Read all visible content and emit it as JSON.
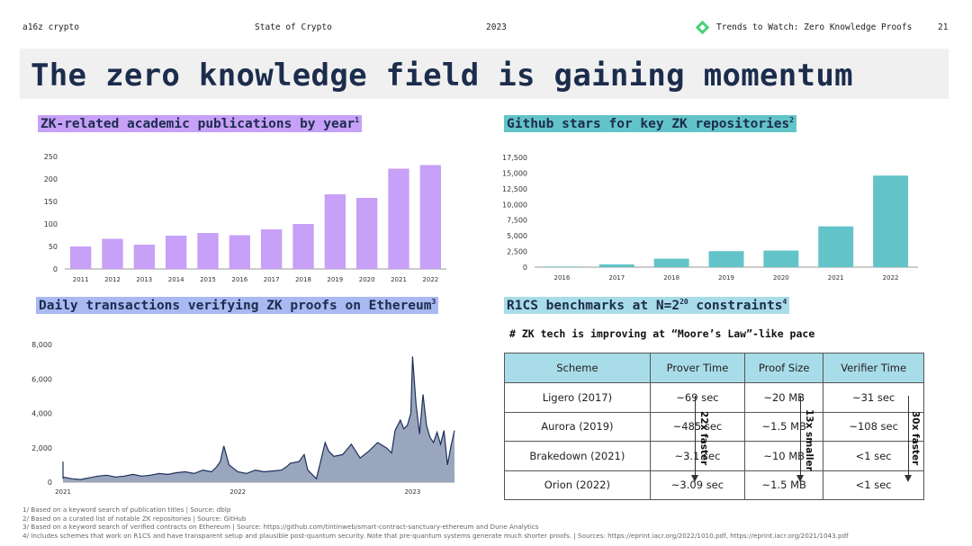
{
  "header": {
    "brand": "a16z crypto",
    "report": "State of Crypto",
    "year": "2023",
    "section": "Trends to Watch: Zero Knowledge Proofs",
    "page": "21"
  },
  "title": "The zero knowledge field is gaining momentum",
  "colors": {
    "purple": "#c7a0f7",
    "teal": "#62c4c8",
    "blue_band": "#a9b9f2",
    "navy": "#1c2c4c",
    "area": "#9aa6bd",
    "area_line": "#1e2f5c",
    "table_header": "#a8dce8",
    "logo_green": "#4cd07a"
  },
  "sections": {
    "pubs": {
      "title": "ZK-related academic publications by year",
      "sup": "1"
    },
    "stars": {
      "title": "Github stars for key ZK repositories",
      "sup": "2"
    },
    "tx": {
      "title": "Daily transactions verifying ZK proofs on Ethereum",
      "sup": "3"
    },
    "r1cs": {
      "title_pre": "R1CS benchmarks at N=2",
      "title_exp": "20",
      "title_post": " constraints",
      "sup": "4",
      "subtitle": "# ZK tech is improving at “Moore’s Law”-like pace"
    }
  },
  "chart_data": [
    {
      "type": "bar",
      "title": "ZK-related academic publications by year",
      "categories": [
        "2011",
        "2012",
        "2013",
        "2014",
        "2015",
        "2016",
        "2017",
        "2018",
        "2019",
        "2020",
        "2021",
        "2022"
      ],
      "values": [
        50,
        67,
        54,
        74,
        80,
        75,
        88,
        100,
        166,
        158,
        223,
        231
      ],
      "ylim": [
        0,
        250
      ],
      "yticks": [
        "0",
        "50",
        "100",
        "150",
        "200",
        "250"
      ],
      "grid": false,
      "color": "#c7a0f7"
    },
    {
      "type": "bar",
      "title": "Github stars for key ZK repositories",
      "categories": [
        "2016",
        "2017",
        "2018",
        "2019",
        "2020",
        "2021",
        "2022"
      ],
      "values": [
        100,
        450,
        1350,
        2550,
        2650,
        6500,
        14600
      ],
      "ylim": [
        0,
        17500
      ],
      "yticks": [
        "0",
        "2,500",
        "5,000",
        "7,500",
        "10,000",
        "12,500",
        "15,000",
        "17,500"
      ],
      "grid": false,
      "color": "#62c4c8"
    },
    {
      "type": "area",
      "title": "Daily transactions verifying ZK proofs on Ethereum",
      "x_ticks": [
        "2021",
        "2022",
        "2023"
      ],
      "ylim": [
        0,
        8000
      ],
      "yticks": [
        "0",
        "2,000",
        "4,000",
        "6,000",
        "8,000"
      ],
      "grid": false,
      "x_range": [
        2021.0,
        2023.24
      ],
      "series": [
        {
          "x": [
            2020.92,
            2020.94,
            2020.96,
            2020.98,
            2021.0,
            2021.05,
            2021.1,
            2021.15,
            2021.2,
            2021.25,
            2021.3,
            2021.35,
            2021.4,
            2021.45,
            2021.5,
            2021.55,
            2021.6,
            2021.65,
            2021.7,
            2021.75,
            2021.8,
            2021.85,
            2021.88,
            2021.9,
            2021.92,
            2021.95,
            2022.0,
            2022.05,
            2022.1,
            2022.15,
            2022.2,
            2022.25,
            2022.28,
            2022.3,
            2022.35,
            2022.38,
            2022.4,
            2022.45,
            2022.5,
            2022.52,
            2022.55,
            2022.6,
            2022.65,
            2022.7,
            2022.75,
            2022.8,
            2022.85,
            2022.88,
            2022.9,
            2022.93,
            2022.95,
            2022.97,
            2022.99,
            2023.0,
            2023.02,
            2023.04,
            2023.06,
            2023.08,
            2023.1,
            2023.12,
            2023.14,
            2023.16,
            2023.18,
            2023.2,
            2023.22,
            2023.24
          ],
          "y": [
            200,
            1200,
            400,
            600,
            300,
            200,
            150,
            250,
            350,
            400,
            300,
            350,
            450,
            350,
            400,
            500,
            450,
            550,
            600,
            500,
            700,
            600,
            900,
            1200,
            2100,
            1000,
            600,
            500,
            700,
            600,
            650,
            700,
            900,
            1100,
            1200,
            1600,
            700,
            200,
            2300,
            1800,
            1500,
            1600,
            2200,
            1400,
            1800,
            2300,
            2000,
            1700,
            3000,
            3600,
            3100,
            3300,
            4000,
            7300,
            4500,
            2800,
            5100,
            3300,
            2600,
            2300,
            2900,
            2200,
            3000,
            1000,
            2100,
            3000
          ]
        }
      ],
      "color": "#9aa6bd"
    },
    {
      "type": "table",
      "title": "R1CS benchmarks at N=2^20 constraints",
      "columns": [
        "Scheme",
        "Prover Time",
        "Proof Size",
        "Verifier Time"
      ],
      "rows": [
        [
          "Ligero (2017)",
          "~69 sec",
          "~20 MB",
          "~31 sec"
        ],
        [
          "Aurora (2019)",
          "~485 sec",
          "~1.5 MB",
          "~108 sec"
        ],
        [
          "Brakedown (2021)",
          "~3.1 sec",
          "~10 MB",
          "<1 sec"
        ],
        [
          "Orion (2022)",
          "~3.09 sec",
          "~1.5 MB",
          "<1 sec"
        ]
      ],
      "annotations": [
        "22x faster",
        "13x smaller",
        "30x faster"
      ]
    }
  ],
  "footnotes": [
    "1/ Based on a keyword search of publication titles | Source: dblp",
    "2/ Based on a curated list of notable ZK repositories | Source: GitHub",
    "3/ Based on a keyword search of verified contracts on Ethereum | Source: https://github.com/tintinweb/smart-contract-sanctuary-ethereum and Dune Analytics",
    "4/ Includes schemes that work on R1CS and have transparent setup and plausible post-quantum security. Note that pre-quantum systems generate much shorter proofs. | Sources: https://eprint.iacr.org/2022/1010.pdf, https://eprint.iacr.org/2021/1043.pdf"
  ]
}
